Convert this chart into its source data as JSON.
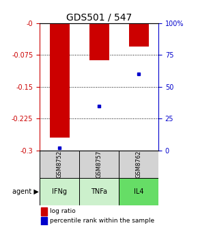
{
  "title": "GDS501 / 547",
  "samples": [
    "GSM8752",
    "GSM8757",
    "GSM8762"
  ],
  "agents": [
    "IFNg",
    "TNFa",
    "IL4"
  ],
  "log_ratios": [
    -0.27,
    -0.087,
    -0.055
  ],
  "percentile_ranks": [
    2.0,
    35.0,
    60.0
  ],
  "ylim_log": [
    0.0,
    -0.3
  ],
  "yticks_log": [
    0.0,
    -0.075,
    -0.15,
    -0.225,
    -0.3
  ],
  "ytick_log_labels": [
    "-0",
    "-0.075",
    "-0.15",
    "-0.225",
    "-0.3"
  ],
  "yticks_pct": [
    100,
    75,
    50,
    25,
    0
  ],
  "ytick_pct_labels": [
    "100%",
    "75",
    "50",
    "25",
    "0"
  ],
  "bar_color": "#cc0000",
  "pct_color": "#0000cc",
  "sample_bg": "#d3d3d3",
  "agent_bg": [
    "#ccf0cc",
    "#ccf0cc",
    "#66dd66"
  ],
  "title_fontsize": 10,
  "tick_fontsize": 7,
  "bar_width": 0.5,
  "legend_square_size": 6
}
